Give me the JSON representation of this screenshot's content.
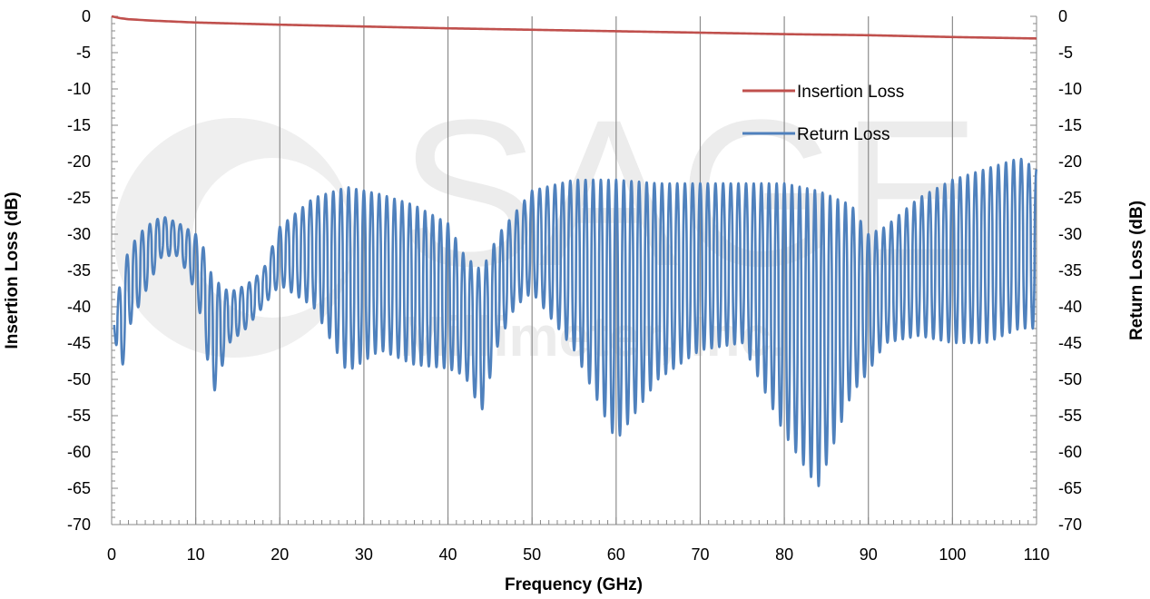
{
  "chart_data": {
    "type": "line",
    "title": "",
    "xlabel": "Frequency (GHz)",
    "ylabel": "Insertion Loss (dB)",
    "y2label": "Return Loss (dB)",
    "xlim": [
      0,
      110
    ],
    "ylim": [
      -70,
      0
    ],
    "y2lim": [
      -70,
      0
    ],
    "x_ticks": [
      0,
      10,
      20,
      30,
      40,
      50,
      60,
      70,
      80,
      90,
      100,
      110
    ],
    "y_ticks": [
      0,
      -5,
      -10,
      -15,
      -20,
      -25,
      -30,
      -35,
      -40,
      -45,
      -50,
      -55,
      -60,
      -65,
      -70
    ],
    "grid": "vertical major gridlines",
    "legend_position": "top-right inside plot",
    "watermark": {
      "brand": "SAGE",
      "line2": "Millimeter, Inc."
    },
    "series": [
      {
        "name": "Insertion Loss",
        "color": "#c0504d",
        "axis": "left",
        "x": [
          0,
          1,
          2,
          5,
          10,
          20,
          30,
          40,
          50,
          60,
          70,
          80,
          90,
          100,
          110
        ],
        "y": [
          0,
          -0.25,
          -0.4,
          -0.6,
          -0.85,
          -1.15,
          -1.4,
          -1.65,
          -1.85,
          -2.05,
          -2.25,
          -2.45,
          -2.6,
          -2.85,
          -3.05
        ]
      },
      {
        "name": "Return Loss",
        "color": "#4f81bd",
        "axis": "right",
        "envelope_x": [
          0.3,
          1,
          2,
          4,
          6,
          8,
          10,
          11,
          12,
          14,
          16,
          18,
          20,
          24,
          28,
          32,
          36,
          40,
          42,
          44,
          46,
          48,
          50,
          55,
          60,
          65,
          70,
          75,
          80,
          84,
          88,
          90,
          92,
          96,
          100,
          104,
          108,
          110
        ],
        "envelope_upper": [
          -40,
          -37,
          -32,
          -29,
          -27.5,
          -28.5,
          -30,
          -32,
          -36,
          -38,
          -37,
          -35,
          -29,
          -25,
          -23.5,
          -24.5,
          -26,
          -28.5,
          -33,
          -35,
          -30,
          -27,
          -24,
          -22.5,
          -22.5,
          -23,
          -23,
          -23,
          -23,
          -24,
          -26,
          -30,
          -29,
          -25,
          -22.5,
          -21,
          -19.5,
          -21
        ],
        "envelope_lower": [
          -43,
          -50.5,
          -43,
          -38,
          -33,
          -33,
          -38,
          -44,
          -52.5,
          -45,
          -43,
          -40,
          -37,
          -40,
          -49,
          -46,
          -48,
          -48.5,
          -49.5,
          -54.5,
          -45,
          -40,
          -38,
          -46,
          -58.5,
          -50,
          -46,
          -45,
          -57.5,
          -65,
          -52,
          -49,
          -45,
          -44,
          -45,
          -45,
          -43,
          -43
        ],
        "cycles_per_ghz": 1.1
      }
    ]
  }
}
